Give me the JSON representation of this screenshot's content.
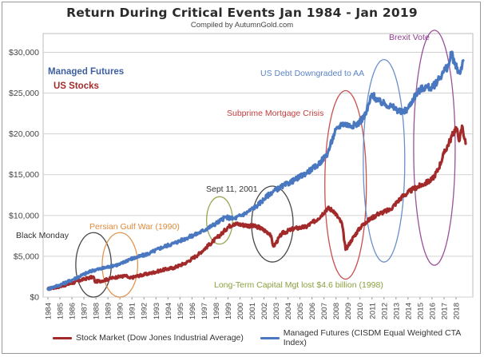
{
  "title": "Return During Critical Events Jan 1984 - Jan 2019",
  "subtitle": "Compiled by AutumnGold.com",
  "chart_data": {
    "type": "line",
    "ylim": [
      0,
      32000
    ],
    "yticks": [
      0,
      5000,
      10000,
      15000,
      20000,
      25000,
      30000
    ],
    "ytick_labels": [
      "$0",
      "$5,000",
      "$10,000",
      "$15,000",
      "$20,000",
      "$25,000",
      "$30,000"
    ],
    "xlim": [
      1984,
      2019
    ],
    "xticks": [
      1984,
      1985,
      1986,
      1987,
      1988,
      1989,
      1990,
      1991,
      1992,
      1993,
      1994,
      1995,
      1996,
      1997,
      1998,
      1999,
      2000,
      2001,
      2002,
      2003,
      2004,
      2005,
      2006,
      2007,
      2008,
      2009,
      2010,
      2011,
      2012,
      2013,
      2014,
      2015,
      2016,
      2017,
      2018
    ],
    "grid": "horizontal",
    "series": [
      {
        "name": "Managed Futures (CISDM Equal Weighted CTA Index)",
        "inline_label": "Managed Futures",
        "color": "#4a78c0",
        "points": [
          [
            1984.0,
            1000
          ],
          [
            1985.0,
            1500
          ],
          [
            1986.0,
            2100
          ],
          [
            1987.0,
            2800
          ],
          [
            1987.8,
            3300
          ],
          [
            1988.5,
            3500
          ],
          [
            1989.5,
            3900
          ],
          [
            1990.0,
            4000
          ],
          [
            1990.7,
            4600
          ],
          [
            1991.5,
            4900
          ],
          [
            1992.5,
            5400
          ],
          [
            1993.5,
            6100
          ],
          [
            1994.5,
            6600
          ],
          [
            1995.5,
            7200
          ],
          [
            1996.5,
            7800
          ],
          [
            1997.5,
            8600
          ],
          [
            1998.3,
            9300
          ],
          [
            1998.8,
            9800
          ],
          [
            1999.5,
            9600
          ],
          [
            2000.5,
            10300
          ],
          [
            2001.5,
            11300
          ],
          [
            2002.5,
            12700
          ],
          [
            2003.3,
            13400
          ],
          [
            2004.5,
            14300
          ],
          [
            2005.5,
            15200
          ],
          [
            2006.5,
            16200
          ],
          [
            2007.3,
            17600
          ],
          [
            2007.9,
            20200
          ],
          [
            2008.5,
            21300
          ],
          [
            2009.2,
            21000
          ],
          [
            2009.8,
            21200
          ],
          [
            2010.5,
            22400
          ],
          [
            2011.0,
            24900
          ],
          [
            2011.5,
            24000
          ],
          [
            2012.0,
            23700
          ],
          [
            2012.7,
            23300
          ],
          [
            2013.5,
            22600
          ],
          [
            2014.0,
            23100
          ],
          [
            2014.5,
            24500
          ],
          [
            2015.0,
            25400
          ],
          [
            2015.5,
            25800
          ],
          [
            2016.0,
            25600
          ],
          [
            2016.5,
            26600
          ],
          [
            2017.0,
            27700
          ],
          [
            2017.4,
            28400
          ],
          [
            2017.6,
            30000
          ],
          [
            2017.9,
            28500
          ],
          [
            2018.3,
            27400
          ],
          [
            2018.6,
            29000
          ]
        ]
      },
      {
        "name": "Stock Market (Dow Jones Industrial Average)",
        "inline_label": "US Stocks",
        "color": "#a32a2a",
        "points": [
          [
            1984.0,
            1000
          ],
          [
            1985.0,
            1300
          ],
          [
            1986.0,
            1700
          ],
          [
            1987.0,
            2200
          ],
          [
            1987.8,
            2500
          ],
          [
            1987.9,
            1900
          ],
          [
            1988.5,
            2000
          ],
          [
            1989.5,
            2400
          ],
          [
            1990.5,
            2600
          ],
          [
            1990.8,
            2300
          ],
          [
            1991.5,
            2600
          ],
          [
            1992.5,
            2900
          ],
          [
            1993.5,
            3300
          ],
          [
            1994.5,
            3600
          ],
          [
            1995.5,
            4200
          ],
          [
            1996.5,
            5200
          ],
          [
            1997.5,
            6500
          ],
          [
            1998.5,
            7800
          ],
          [
            1999.0,
            8600
          ],
          [
            1999.5,
            9000
          ],
          [
            2000.5,
            8800
          ],
          [
            2001.5,
            8600
          ],
          [
            2002.5,
            7800
          ],
          [
            2002.8,
            6200
          ],
          [
            2003.5,
            7800
          ],
          [
            2004.5,
            8400
          ],
          [
            2005.5,
            8600
          ],
          [
            2006.5,
            9600
          ],
          [
            2007.3,
            10900
          ],
          [
            2007.8,
            10600
          ],
          [
            2008.5,
            9000
          ],
          [
            2008.8,
            5800
          ],
          [
            2009.3,
            7000
          ],
          [
            2010.0,
            8500
          ],
          [
            2010.5,
            9200
          ],
          [
            2011.5,
            10200
          ],
          [
            2012.5,
            10700
          ],
          [
            2013.5,
            12300
          ],
          [
            2014.5,
            13300
          ],
          [
            2015.5,
            14000
          ],
          [
            2016.0,
            14400
          ],
          [
            2016.5,
            15600
          ],
          [
            2017.0,
            17600
          ],
          [
            2017.5,
            19200
          ],
          [
            2018.0,
            20800
          ],
          [
            2018.3,
            19200
          ],
          [
            2018.5,
            21000
          ],
          [
            2018.8,
            18800
          ]
        ]
      }
    ],
    "annotations": [
      {
        "label": "Black Monday",
        "color": "#333333"
      },
      {
        "label": "Persian Gulf War (1990)",
        "color": "#e08a3c"
      },
      {
        "label": "Long-Term Capital Mgt lost $4.6 billion (1998)",
        "color": "#8aa040"
      },
      {
        "label": "Sept 11, 2001",
        "color": "#333333"
      },
      {
        "label": "Subprime Mortgage Crisis",
        "color": "#c43c3c"
      },
      {
        "label": "US Debt Downgraded to AA",
        "color": "#5a83c4"
      },
      {
        "label": "Brexit Vote",
        "color": "#8e3e8e"
      }
    ],
    "ellipses": [
      {
        "center_year": 1987.8,
        "ymin": 0,
        "ymax": 7900,
        "color": "#333333"
      },
      {
        "center_year": 1990.0,
        "ymin": 0,
        "ymax": 7900,
        "color": "#e08a3c"
      },
      {
        "center_year": 1998.3,
        "ymin": 6500,
        "ymax": 12300,
        "color": "#8aa040"
      },
      {
        "center_year": 2002.7,
        "ymin": 4300,
        "ymax": 13600,
        "color": "#333333"
      },
      {
        "center_year": 2008.8,
        "ymin": 2200,
        "ymax": 25300,
        "color": "#c43c3c"
      },
      {
        "center_year": 2012.0,
        "ymin": 4300,
        "ymax": 29100,
        "color": "#5a83c4"
      },
      {
        "center_year": 2016.2,
        "ymin": 3900,
        "ymax": 32700,
        "color": "#8e3e8e"
      }
    ],
    "legend": [
      {
        "label": "Stock Market (Dow Jones Industrial Average)",
        "color": "#a32a2a"
      },
      {
        "label": "Managed Futures (CISDM Equal Weighted CTA Index)",
        "color": "#4a78c0"
      }
    ],
    "legend_position": "bottom"
  }
}
